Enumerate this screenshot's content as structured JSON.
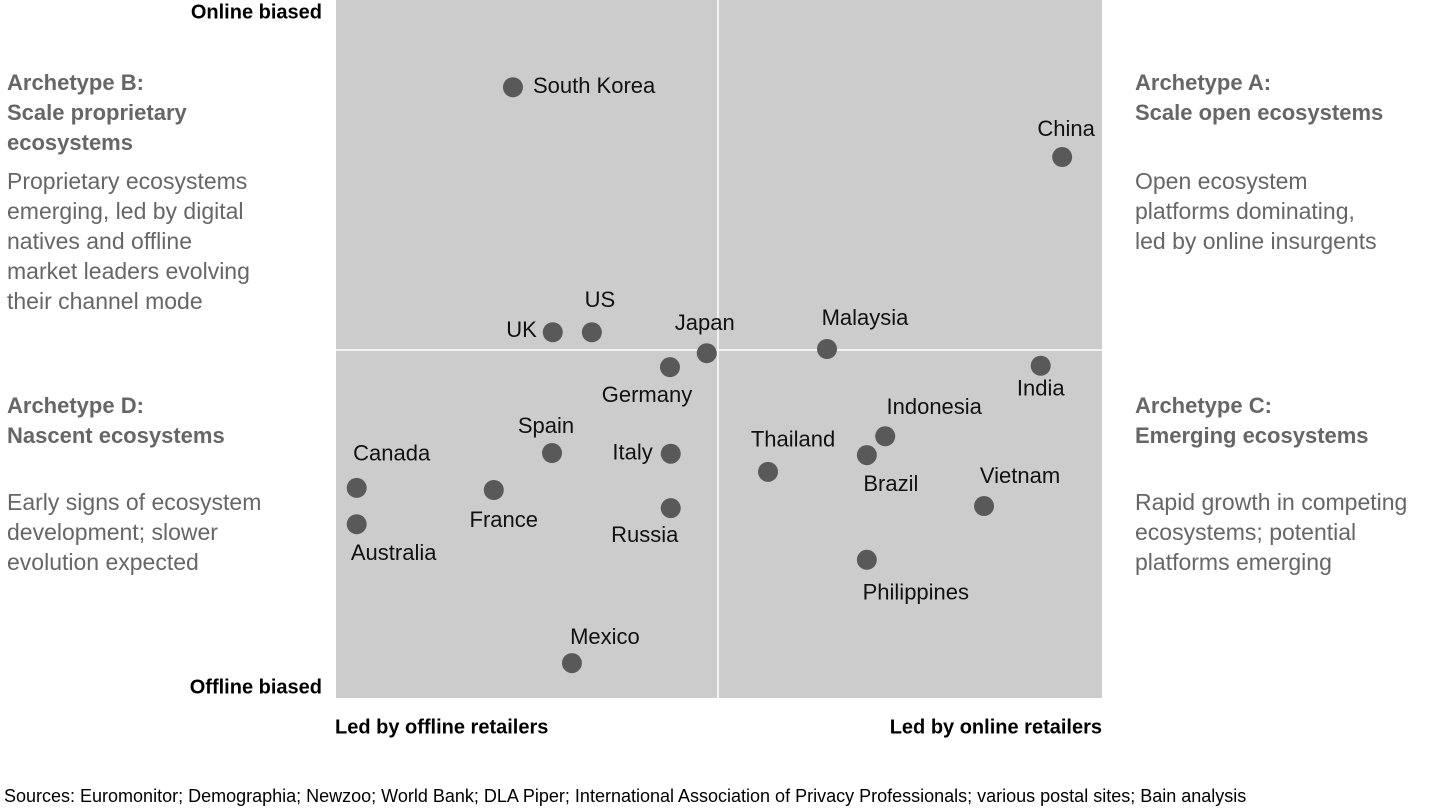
{
  "chart_data": {
    "type": "scatter",
    "y_top_label": "Online biased",
    "y_bottom_label": "Offline biased",
    "x_left_label": "Led by offline retailers",
    "x_right_label": "Led by online retailers",
    "xlim": [
      0,
      100
    ],
    "ylim": [
      0,
      100
    ],
    "color": "#595959",
    "labels": [
      "South Korea",
      "China",
      "UK",
      "US",
      "Japan",
      "Malaysia",
      "Germany",
      "India",
      "Indonesia",
      "Spain",
      "Italy",
      "Brazil",
      "Thailand",
      "Canada",
      "France",
      "Vietnam",
      "Russia",
      "Australia",
      "Philippines",
      "Mexico"
    ],
    "x": [
      23.1,
      94.8,
      28.3,
      33.4,
      48.4,
      64.1,
      43.6,
      92.0,
      71.7,
      28.2,
      43.7,
      69.3,
      56.4,
      2.7,
      20.6,
      84.6,
      43.7,
      2.7,
      69.3,
      30.8
    ],
    "y": [
      87.5,
      77.5,
      52.4,
      52.4,
      49.4,
      50.0,
      47.4,
      47.6,
      37.5,
      35.1,
      35.0,
      34.8,
      32.4,
      30.1,
      29.8,
      27.5,
      27.2,
      24.9,
      19.8,
      5.0
    ],
    "quadrants": [
      {
        "title": [
          "Archetype B:",
          "Scale proprietary",
          "ecosystems"
        ],
        "text": [
          "Proprietary ecosystems",
          "emerging, led by digital",
          "natives and offline",
          "market leaders evolving",
          "their channel mode"
        ]
      },
      {
        "title": [
          "Archetype A:",
          "Scale open ecosystems"
        ],
        "text": [
          "Open ecosystem",
          "platforms dominating,",
          "led by online insurgents"
        ]
      },
      {
        "title": [
          "Archetype D:",
          "Nascent ecosystems"
        ],
        "text": [
          "Early signs of ecosystem",
          "development; slower",
          "evolution expected"
        ]
      },
      {
        "title": [
          "Archetype C:",
          "Emerging ecosystems"
        ],
        "text": [
          "Rapid growth in competing",
          "ecosystems; potential",
          "platforms emerging"
        ]
      }
    ],
    "source": "Sources: Euromonitor; Demographia; Newzoo; World Bank; DLA Piper; International Association of Privacy Professionals; various postal sites; Bain analysis"
  }
}
